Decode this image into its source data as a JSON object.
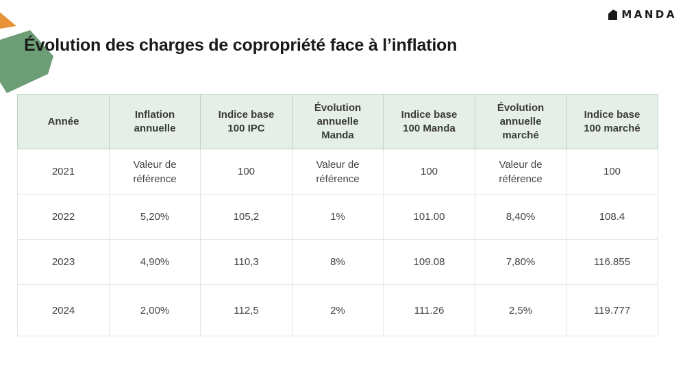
{
  "brand": {
    "name": "MANDA",
    "accent_green": "#6e9e76",
    "accent_orange": "#e8933a"
  },
  "title": "Évolution des charges de copropriété face à l’inflation",
  "table": {
    "headers": [
      "Année",
      "Inflation\nannuelle",
      "Indice base\n100 IPC",
      "Évolution\nannuelle\nManda",
      "Indice base\n100 Manda",
      "Évolution\nannuelle\nmarché",
      "Indice base\n100 marché"
    ],
    "rows": [
      [
        "2021",
        "Valeur de\nréférence",
        "100",
        "Valeur de\nréférence",
        "100",
        "Valeur de\nréférence",
        "100"
      ],
      [
        "2022",
        "5,20%",
        "105,2",
        "1%",
        "101.00",
        "8,40%",
        "108.4"
      ],
      [
        "2023",
        "4,90%",
        "110,3",
        "8%",
        "109.08",
        "7,80%",
        "116.855"
      ],
      [
        "2024",
        "2,00%",
        "112,5",
        "2%",
        "111.26",
        "2,5%",
        "119.777"
      ]
    ]
  }
}
